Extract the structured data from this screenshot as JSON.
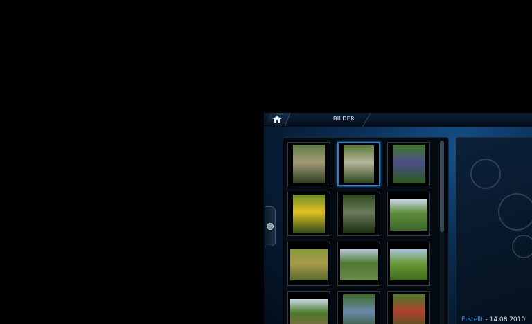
{
  "header": {
    "home_icon": "home-icon",
    "title": "BILDER"
  },
  "thumbnails": [
    {
      "kind": "portrait",
      "selected": false,
      "colors": [
        "#5f7c44",
        "#a39a78",
        "#2c3f1f"
      ]
    },
    {
      "kind": "portrait",
      "selected": true,
      "colors": [
        "#5b7a3d",
        "#b7b59a",
        "#2f4a1d"
      ]
    },
    {
      "kind": "portrait",
      "selected": false,
      "colors": [
        "#3f7a24",
        "#4d4d8a",
        "#2b5a1a"
      ]
    },
    {
      "kind": "portrait",
      "selected": false,
      "colors": [
        "#6b8a2a",
        "#e0c020",
        "#2f4a1a"
      ]
    },
    {
      "kind": "portrait",
      "selected": false,
      "colors": [
        "#2e4a1e",
        "#6a7a5a",
        "#1b2d12"
      ]
    },
    {
      "kind": "landscape",
      "selected": false,
      "colors": [
        "#c9d8e6",
        "#5c8a3a",
        "#3e6a2a"
      ]
    },
    {
      "kind": "landscape",
      "selected": false,
      "colors": [
        "#8a9a3a",
        "#a69a4a",
        "#5a6a2a"
      ]
    },
    {
      "kind": "landscape",
      "selected": false,
      "colors": [
        "#b8c9d9",
        "#4e7a2f",
        "#6a8a4a"
      ]
    },
    {
      "kind": "landscape",
      "selected": false,
      "colors": [
        "#a9c3dd",
        "#6a9a3a",
        "#3e6a1a"
      ]
    },
    {
      "kind": "landscape",
      "selected": false,
      "colors": [
        "#c9dae6",
        "#4a7a2a",
        "#8a6a4a"
      ]
    },
    {
      "kind": "portrait",
      "selected": false,
      "colors": [
        "#3e6a2a",
        "#6a8aaa",
        "#2a4a1a"
      ]
    },
    {
      "kind": "portrait",
      "selected": false,
      "colors": [
        "#4a7a2a",
        "#b04030",
        "#2e5a1a"
      ]
    }
  ],
  "info": {
    "created_label": "Erstellt",
    "created_sep": " - ",
    "created_value": "14.08.2010"
  },
  "scrollbar": {
    "position": 0.0
  }
}
